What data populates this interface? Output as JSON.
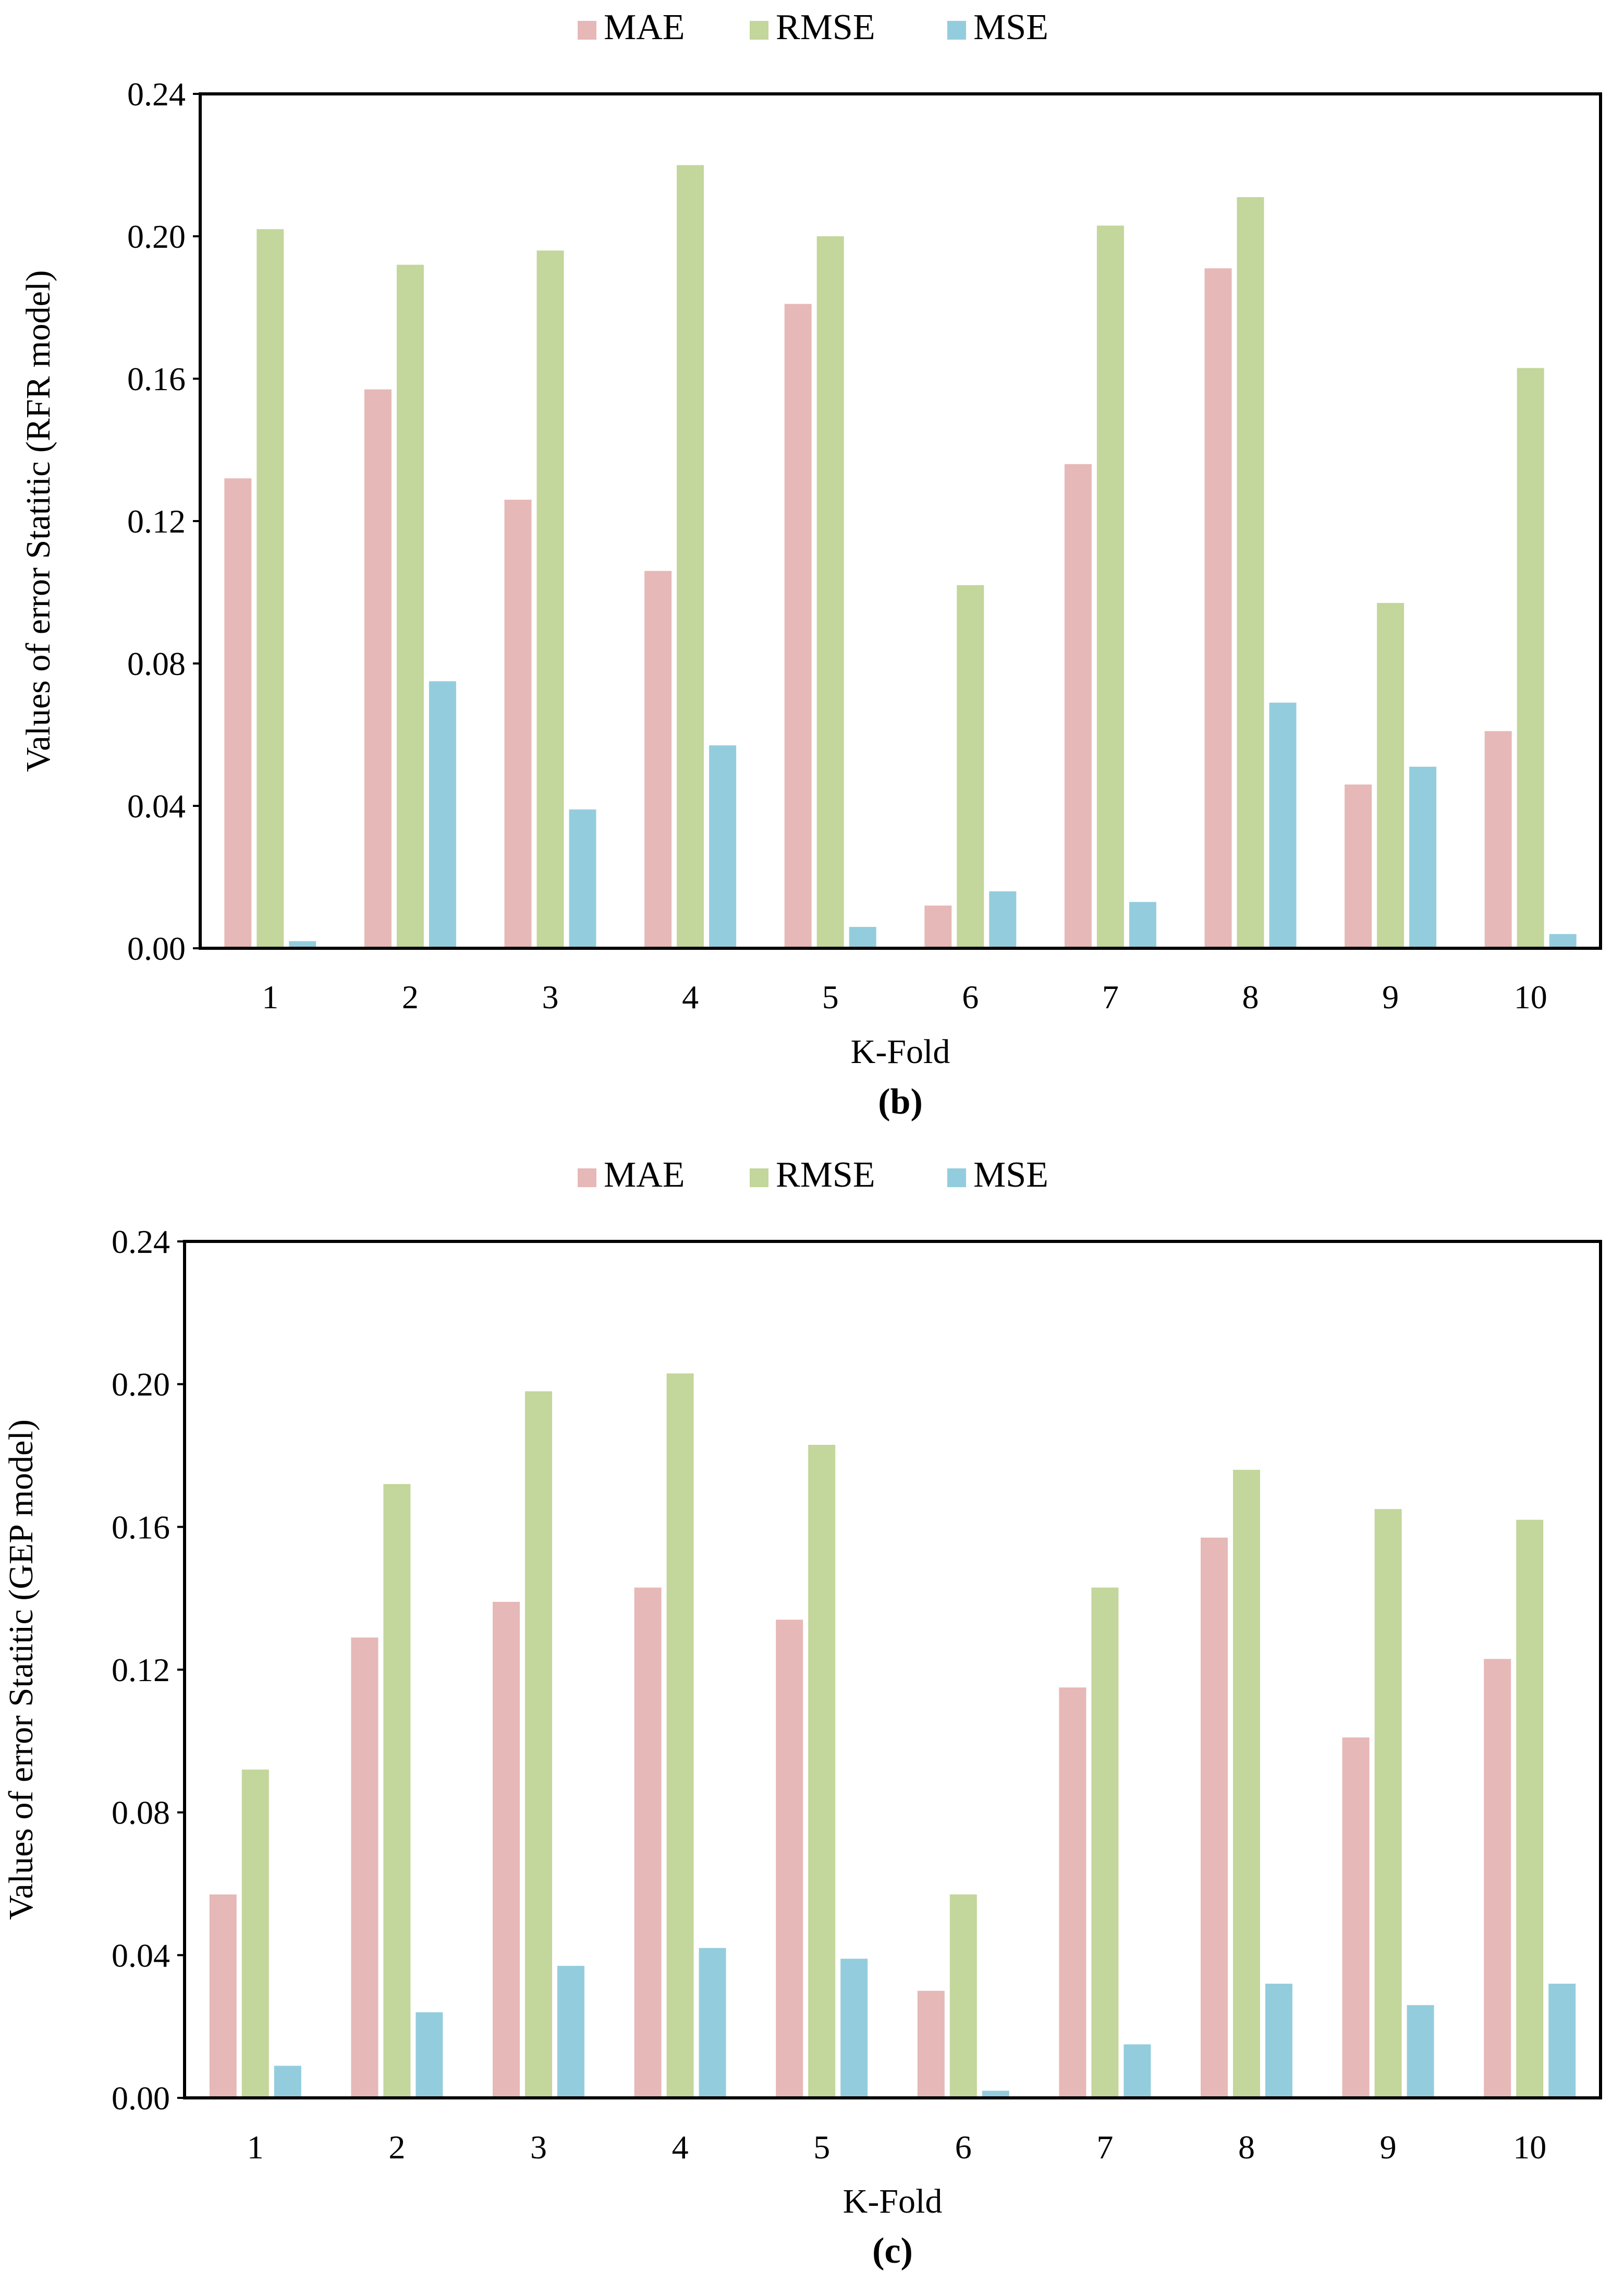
{
  "colors": {
    "MAE": "#e6b8b7",
    "RMSE": "#c3d69b",
    "MSE": "#93cddd",
    "frame": "#000000"
  },
  "chart_data": [
    {
      "type": "bar",
      "panel_label": "(b)",
      "xlabel": "K-Fold",
      "ylabel": "Values of error Statitic (RFR model)",
      "categories": [
        "1",
        "2",
        "3",
        "4",
        "5",
        "6",
        "7",
        "8",
        "9",
        "10"
      ],
      "ylim": [
        0,
        0.24
      ],
      "yticks": [
        "0.00",
        "0.04",
        "0.08",
        "0.12",
        "0.16",
        "0.20",
        "0.24"
      ],
      "legend": [
        "MAE",
        "RMSE",
        "MSE"
      ],
      "legend_position": "top-center",
      "grid": false,
      "series": [
        {
          "name": "MAE",
          "values": [
            0.132,
            0.157,
            0.126,
            0.106,
            0.181,
            0.012,
            0.136,
            0.191,
            0.046,
            0.061
          ]
        },
        {
          "name": "RMSE",
          "values": [
            0.202,
            0.192,
            0.196,
            0.22,
            0.2,
            0.102,
            0.203,
            0.211,
            0.097,
            0.163
          ]
        },
        {
          "name": "MSE",
          "values": [
            0.002,
            0.075,
            0.039,
            0.057,
            0.006,
            0.016,
            0.013,
            0.069,
            0.051,
            0.004
          ]
        }
      ]
    },
    {
      "type": "bar",
      "panel_label": "(c)",
      "xlabel": "K-Fold",
      "ylabel": "Values of error Statitic (GEP  model)",
      "categories": [
        "1",
        "2",
        "3",
        "4",
        "5",
        "6",
        "7",
        "8",
        "9",
        "10"
      ],
      "ylim": [
        0,
        0.24
      ],
      "yticks": [
        "0.00",
        "0.04",
        "0.08",
        "0.12",
        "0.16",
        "0.20",
        "0.24"
      ],
      "legend": [
        "MAE",
        "RMSE",
        "MSE"
      ],
      "legend_position": "top-center",
      "grid": false,
      "series": [
        {
          "name": "MAE",
          "values": [
            0.057,
            0.129,
            0.139,
            0.143,
            0.134,
            0.03,
            0.115,
            0.157,
            0.101,
            0.123
          ]
        },
        {
          "name": "RMSE",
          "values": [
            0.092,
            0.172,
            0.198,
            0.203,
            0.183,
            0.057,
            0.143,
            0.176,
            0.165,
            0.162
          ]
        },
        {
          "name": "MSE",
          "values": [
            0.009,
            0.024,
            0.037,
            0.042,
            0.039,
            0.002,
            0.015,
            0.032,
            0.026,
            0.032
          ]
        }
      ]
    }
  ]
}
